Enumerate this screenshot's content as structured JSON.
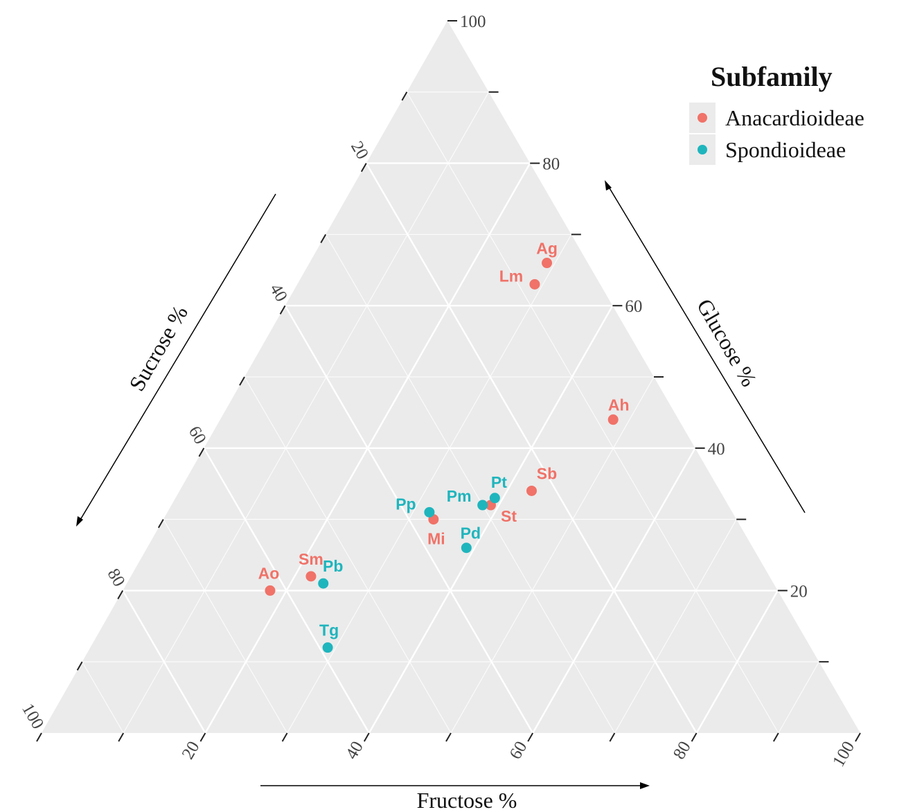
{
  "chart_data": {
    "type": "scatter",
    "subtype": "ternary",
    "grid": true,
    "legend_position": "top-right",
    "axes": {
      "top": {
        "label": "Glucose %",
        "range": [
          0,
          100
        ]
      },
      "left": {
        "label": "Sucrose %",
        "range": [
          0,
          100
        ]
      },
      "bottom": {
        "label": "Fructose %",
        "range": [
          0,
          100
        ]
      }
    },
    "tick_labels": [
      "20",
      "40",
      "60",
      "80",
      "100"
    ],
    "legend": {
      "title": "Subfamily",
      "entries": [
        {
          "name": "Anacardioideae",
          "color": "#f07268"
        },
        {
          "name": "Spondioideae",
          "color": "#1fb5bd"
        }
      ]
    },
    "points": [
      {
        "label": "Ag",
        "group": "Anacardioideae",
        "glucose": 66,
        "sucrose": 5,
        "fructose": 29
      },
      {
        "label": "Lm",
        "group": "Anacardioideae",
        "glucose": 63,
        "sucrose": 8,
        "fructose": 29
      },
      {
        "label": "Ah",
        "group": "Anacardioideae",
        "glucose": 44,
        "sucrose": 8,
        "fructose": 48
      },
      {
        "label": "Sb",
        "group": "Anacardioideae",
        "glucose": 34,
        "sucrose": 23,
        "fructose": 43
      },
      {
        "label": "St",
        "group": "Anacardioideae",
        "glucose": 32,
        "sucrose": 29,
        "fructose": 39
      },
      {
        "label": "Mi",
        "group": "Anacardioideae",
        "glucose": 30,
        "sucrose": 37,
        "fructose": 33
      },
      {
        "label": "Sm",
        "group": "Anacardioideae",
        "glucose": 22,
        "sucrose": 56,
        "fructose": 22
      },
      {
        "label": "Ao",
        "group": "Anacardioideae",
        "glucose": 20,
        "sucrose": 62,
        "fructose": 18
      },
      {
        "label": "Pt",
        "group": "Spondioideae",
        "glucose": 33,
        "sucrose": 28,
        "fructose": 39
      },
      {
        "label": "Pm",
        "group": "Spondioideae",
        "glucose": 32,
        "sucrose": 30,
        "fructose": 38
      },
      {
        "label": "Pp",
        "group": "Spondioideae",
        "glucose": 31,
        "sucrose": 37,
        "fructose": 32
      },
      {
        "label": "Pd",
        "group": "Spondioideae",
        "glucose": 26,
        "sucrose": 35,
        "fructose": 39
      },
      {
        "label": "Pb",
        "group": "Spondioideae",
        "glucose": 21,
        "sucrose": 55,
        "fructose": 24
      },
      {
        "label": "Tg",
        "group": "Spondioideae",
        "glucose": 12,
        "sucrose": 59,
        "fructose": 29
      }
    ]
  }
}
